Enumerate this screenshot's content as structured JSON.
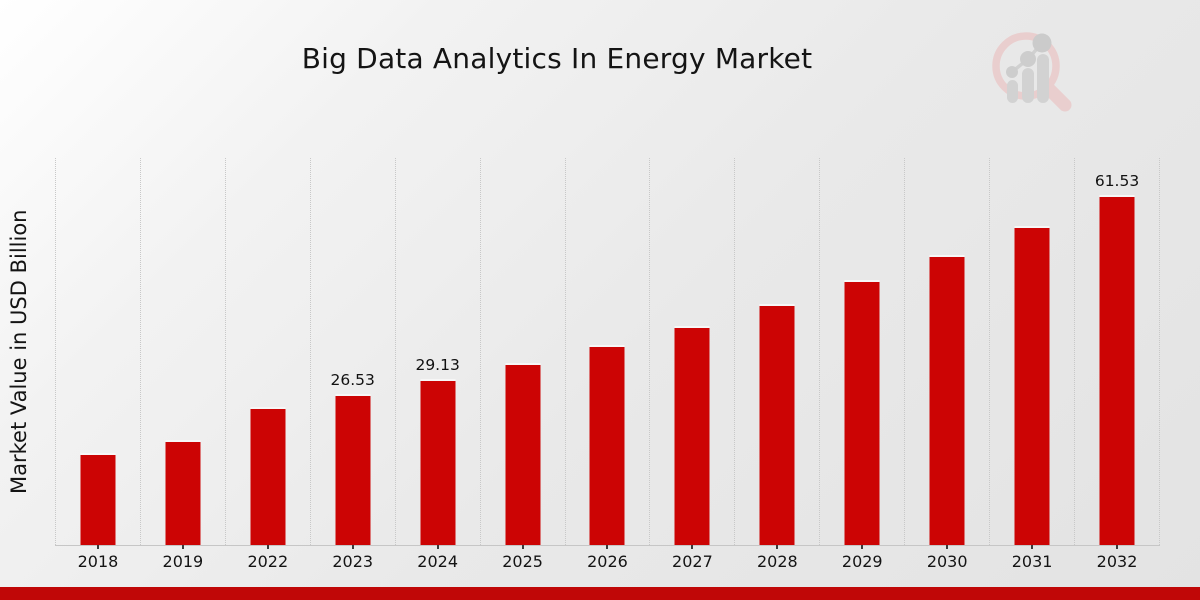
{
  "page": {
    "background_top_color": "#ffffff",
    "background_bottom_color": "#e3e3e3",
    "footer_bar_color": "#c00707"
  },
  "logo": {
    "icon": "magnifier-barchart-logo",
    "ring_color": "#eacaca",
    "bars_color": "#cfcfcf",
    "dots_color": "#c9c9c9"
  },
  "chart_data": {
    "type": "bar",
    "title": "Big Data Analytics In Energy Market",
    "xlabel": "",
    "ylabel": "Market Value in USD Billion",
    "categories": [
      "2018",
      "2019",
      "2022",
      "2023",
      "2024",
      "2025",
      "2026",
      "2027",
      "2028",
      "2029",
      "2030",
      "2031",
      "2032"
    ],
    "values": [
      16.2,
      18.4,
      24.2,
      26.53,
      29.13,
      31.98,
      35.12,
      38.56,
      42.34,
      46.49,
      51.05,
      56.05,
      61.53
    ],
    "data_labels": [
      "",
      "",
      "",
      "26.53",
      "29.13",
      "",
      "",
      "",
      "",
      "",
      "",
      "",
      "61.53"
    ],
    "bar_color": "#cc0404",
    "ylim": [
      0,
      68
    ],
    "grid": "vertical-dotted",
    "legend": false,
    "notes": "values without data labels estimated from bar heights"
  }
}
